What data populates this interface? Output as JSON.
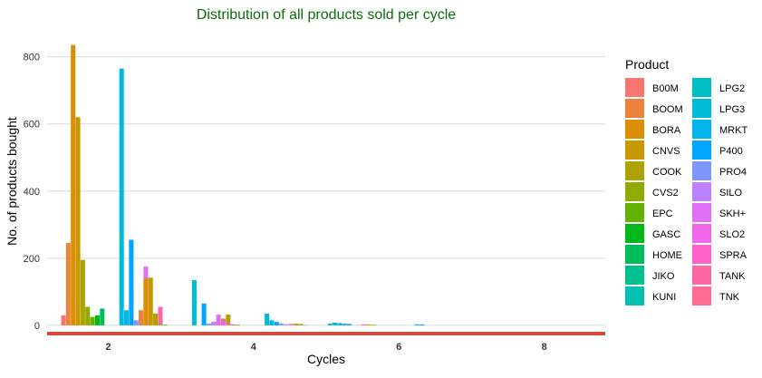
{
  "chart_data": {
    "type": "bar",
    "title": "Distribution of all products sold per cycle",
    "xlabel": "Cycles",
    "ylabel": "No. of products bought",
    "xlim": [
      1.16,
      8.84
    ],
    "ylim": [
      -30,
      880
    ],
    "x_ticks": [
      2,
      4,
      6,
      8
    ],
    "y_ticks": [
      0,
      200,
      400,
      600,
      800
    ],
    "grid": "horizontal",
    "legend": {
      "title": "Product",
      "position": "right"
    },
    "products": [
      "B00M",
      "BOOM",
      "BORA",
      "CNVS",
      "COOK",
      "CVS2",
      "EPC",
      "GASC",
      "HOME",
      "JIKO",
      "KUNI",
      "LPG2",
      "LPG3",
      "MRKT",
      "P400",
      "PRO4",
      "SILO",
      "SKH+",
      "SLO2",
      "SPRA",
      "TANK",
      "TNK"
    ],
    "colors": [
      "#F8766D",
      "#EC823C",
      "#DB8E00",
      "#C79800",
      "#AEA200",
      "#8FAA00",
      "#64B200",
      "#00B81B",
      "#00BD5C",
      "#00C08D",
      "#00C1B2",
      "#00BFC4",
      "#00BCD6",
      "#00B6EB",
      "#00A5FF",
      "#7F96FF",
      "#BC81FF",
      "#E070F5",
      "#F066E9",
      "#FF61C9",
      "#FF67A4",
      "#FF6C91"
    ],
    "series": [
      {
        "x": 2,
        "values": [
          30,
          245,
          835,
          620,
          195,
          55,
          25,
          30,
          50,
          0,
          0,
          0,
          0,
          0,
          0,
          15,
          20,
          175,
          0,
          35,
          55,
          0
        ]
      },
      {
        "x": 2,
        "values": [
          0,
          0,
          0,
          0,
          0,
          0,
          0,
          0,
          0,
          0,
          0,
          0,
          0,
          0,
          0,
          0,
          0,
          0,
          0,
          0,
          0,
          0
        ]
      },
      {
        "x": 3,
        "values": [
          0,
          45,
          140,
          142,
          35,
          3,
          2,
          0,
          0,
          0,
          0,
          0,
          0,
          0,
          0,
          0,
          0,
          0,
          0,
          0,
          0,
          0
        ]
      },
      {
        "x": 4,
        "values": [
          0,
          10,
          15,
          20,
          32,
          3,
          2,
          0,
          0,
          0,
          0,
          0,
          0,
          0,
          0,
          0,
          0,
          0,
          0,
          0,
          0,
          0
        ]
      },
      {
        "x": 5,
        "values": [
          0,
          2,
          4,
          5,
          4,
          1,
          0,
          0,
          0,
          0,
          0,
          0,
          0,
          0,
          0,
          0,
          0,
          0,
          0,
          0,
          0,
          0
        ]
      },
      {
        "x": 6,
        "values": [
          0,
          1,
          2,
          3,
          2,
          0,
          0,
          0,
          0,
          0,
          0,
          0,
          0,
          0,
          0,
          0,
          0,
          0,
          0,
          0,
          0,
          0
        ]
      }
    ],
    "bars": [
      {
        "x": 2,
        "product": "LPG2",
        "value": 0
      },
      {
        "x": 2,
        "product": "LPG3",
        "value": 765
      },
      {
        "x": 2,
        "product": "MRKT",
        "value": 45
      },
      {
        "x": 2,
        "product": "P400",
        "value": 255
      },
      {
        "x": 3,
        "product": "KUNI",
        "value": 0
      },
      {
        "x": 3,
        "product": "LPG3",
        "value": 135
      },
      {
        "x": 3,
        "product": "MRKT",
        "value": 0
      },
      {
        "x": 3,
        "product": "P400",
        "value": 65
      },
      {
        "x": 3,
        "product": "PRO4",
        "value": 5
      },
      {
        "x": 3,
        "product": "SILO",
        "value": 10
      },
      {
        "x": 3,
        "product": "SKH+",
        "value": 32
      },
      {
        "x": 3,
        "product": "SLO2",
        "value": 15
      },
      {
        "x": 3,
        "product": "SPRA",
        "value": 5
      },
      {
        "x": 3,
        "product": "TANK",
        "value": 2
      },
      {
        "x": 4,
        "product": "LPG3",
        "value": 35
      },
      {
        "x": 4,
        "product": "MRKT",
        "value": 15
      },
      {
        "x": 4,
        "product": "P400",
        "value": 10
      },
      {
        "x": 4,
        "product": "PRO4",
        "value": 5
      },
      {
        "x": 4,
        "product": "SILO",
        "value": 3
      },
      {
        "x": 4,
        "product": "SKH+",
        "value": 3
      },
      {
        "x": 5,
        "product": "KUNI",
        "value": 5
      },
      {
        "x": 5,
        "product": "LPG2",
        "value": 8
      },
      {
        "x": 5,
        "product": "LPG3",
        "value": 7
      },
      {
        "x": 5,
        "product": "MRKT",
        "value": 5
      },
      {
        "x": 5,
        "product": "P400",
        "value": 4
      },
      {
        "x": 5,
        "product": "SKH+",
        "value": 3
      },
      {
        "x": 6,
        "product": "MRKT",
        "value": 3
      },
      {
        "x": 6,
        "product": "P400",
        "value": 3
      }
    ]
  }
}
